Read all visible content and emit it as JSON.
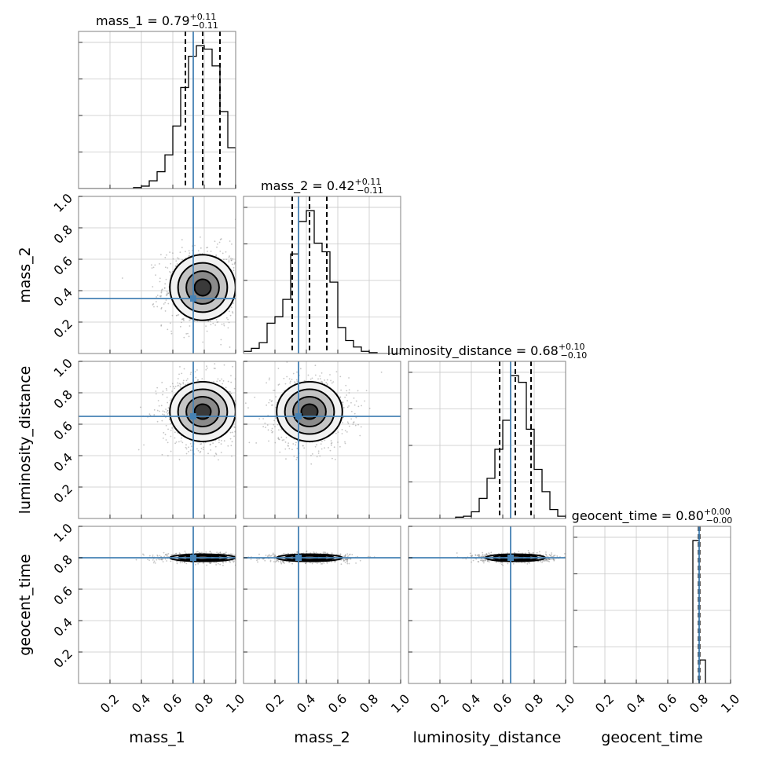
{
  "chart_data": {
    "type": "corner",
    "parameters": [
      "mass_1",
      "mass_2",
      "luminosity_distance",
      "geocent_time"
    ],
    "axis_range": [
      0,
      1
    ],
    "tick_labels": [
      "0.2",
      "0.4",
      "0.6",
      "0.8",
      "1.0"
    ],
    "tick_values": [
      0.2,
      0.4,
      0.6,
      0.8,
      1.0
    ],
    "grid": true,
    "truth_values": {
      "mass_1": 0.73,
      "mass_2": 0.35,
      "luminosity_distance": 0.65,
      "geocent_time": 0.8
    },
    "titles": [
      {
        "param": "mass_1",
        "text": "mass_1 = 0.79",
        "plus": "+0.11",
        "minus": "−0.11",
        "median": 0.79,
        "lo": 0.68,
        "hi": 0.9
      },
      {
        "param": "mass_2",
        "text": "mass_2 = 0.42",
        "plus": "+0.11",
        "minus": "−0.11",
        "median": 0.42,
        "lo": 0.31,
        "hi": 0.53
      },
      {
        "param": "luminosity_distance",
        "text": "luminosity_distance = 0.68",
        "plus": "+0.10",
        "minus": "−0.10",
        "median": 0.68,
        "lo": 0.58,
        "hi": 0.78
      },
      {
        "param": "geocent_time",
        "text": "geocent_time = 0.80",
        "plus": "+0.00",
        "minus": "−0.00",
        "median": 0.8,
        "lo": 0.797,
        "hi": 0.803
      }
    ],
    "histograms": [
      {
        "param": "mass_1",
        "bin_width": 0.05,
        "bin_starts": [
          0.35,
          0.4,
          0.45,
          0.5,
          0.55,
          0.6,
          0.65,
          0.7,
          0.75,
          0.8,
          0.85,
          0.9,
          0.95
        ],
        "counts": [
          0.2,
          0.5,
          1.6,
          3.5,
          7.0,
          13.0,
          21.0,
          27.5,
          29.7,
          29.0,
          25.5,
          16.0,
          8.5
        ]
      },
      {
        "param": "mass_2",
        "bin_width": 0.05,
        "bin_starts": [
          0.0,
          0.05,
          0.1,
          0.15,
          0.2,
          0.25,
          0.3,
          0.35,
          0.4,
          0.45,
          0.5,
          0.55,
          0.6,
          0.65,
          0.7,
          0.75,
          0.8
        ],
        "counts": [
          0.5,
          1.2,
          2.5,
          7.0,
          8.5,
          12.5,
          23.0,
          30.5,
          33.0,
          25.5,
          23.5,
          16.5,
          6.0,
          3.0,
          1.5,
          0.5,
          0.2
        ]
      },
      {
        "param": "luminosity_distance",
        "bin_width": 0.05,
        "bin_starts": [
          0.3,
          0.35,
          0.4,
          0.45,
          0.5,
          0.55,
          0.6,
          0.65,
          0.7,
          0.75,
          0.8,
          0.85,
          0.9,
          0.95
        ],
        "counts": [
          0.3,
          0.5,
          1.5,
          4.5,
          9.0,
          15.5,
          22.0,
          32.0,
          30.5,
          20.0,
          11.0,
          6.0,
          2.0,
          0.5
        ]
      },
      {
        "param": "geocent_time",
        "bin_width": 0.04,
        "bin_starts": [
          0.76,
          0.8
        ],
        "counts": [
          33.5,
          5.5
        ]
      }
    ],
    "pairs": [
      {
        "x": "mass_1",
        "y": "mass_2",
        "cx": 0.79,
        "cy": 0.42,
        "sx": 0.11,
        "sy": 0.11
      },
      {
        "x": "mass_1",
        "y": "luminosity_distance",
        "cx": 0.79,
        "cy": 0.68,
        "sx": 0.11,
        "sy": 0.1
      },
      {
        "x": "mass_2",
        "y": "luminosity_distance",
        "cx": 0.42,
        "cy": 0.68,
        "sx": 0.11,
        "sy": 0.1
      },
      {
        "x": "mass_1",
        "y": "geocent_time",
        "cx": 0.79,
        "cy": 0.8,
        "sx": 0.11,
        "sy": 0.012
      },
      {
        "x": "mass_2",
        "y": "geocent_time",
        "cx": 0.42,
        "cy": 0.8,
        "sx": 0.11,
        "sy": 0.012
      },
      {
        "x": "luminosity_distance",
        "y": "geocent_time",
        "cx": 0.68,
        "cy": 0.8,
        "sx": 0.1,
        "sy": 0.012
      }
    ]
  }
}
